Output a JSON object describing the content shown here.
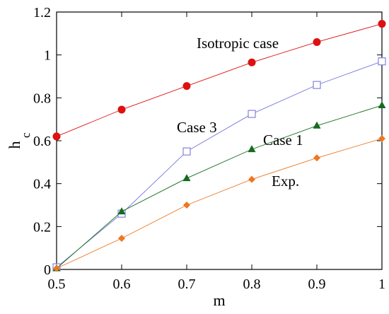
{
  "chart_data": {
    "type": "line",
    "xlabel": "m",
    "ylabel": "h",
    "ylabel_sub": "c",
    "xlim": [
      0.5,
      1.0
    ],
    "ylim": [
      0,
      1.2
    ],
    "x_ticks": [
      "0.5",
      "0.6",
      "0.7",
      "0.8",
      "0.9",
      "1"
    ],
    "y_ticks": [
      "0",
      "0.2",
      "0.4",
      "0.6",
      "0.8",
      "1",
      "1.2"
    ],
    "grid": false,
    "x": [
      0.5,
      0.6,
      0.7,
      0.8,
      0.9,
      1.0
    ],
    "series": [
      {
        "name": "Isotropic case",
        "marker": "circle",
        "color": "#dd1111",
        "values": [
          0.62,
          0.745,
          0.855,
          0.965,
          1.06,
          1.145
        ]
      },
      {
        "name": "Case 3",
        "marker": "square-open",
        "color": "#7777dd",
        "values": [
          0.01,
          0.26,
          0.55,
          0.725,
          0.86,
          0.97
        ]
      },
      {
        "name": "Case 1",
        "marker": "triangle",
        "color": "#156b1e",
        "values": [
          0.005,
          0.27,
          0.425,
          0.56,
          0.67,
          0.765
        ]
      },
      {
        "name": "Exp.",
        "marker": "diamond",
        "color": "#ee7722",
        "values": [
          0.005,
          0.145,
          0.3,
          0.42,
          0.52,
          0.61
        ]
      }
    ]
  }
}
